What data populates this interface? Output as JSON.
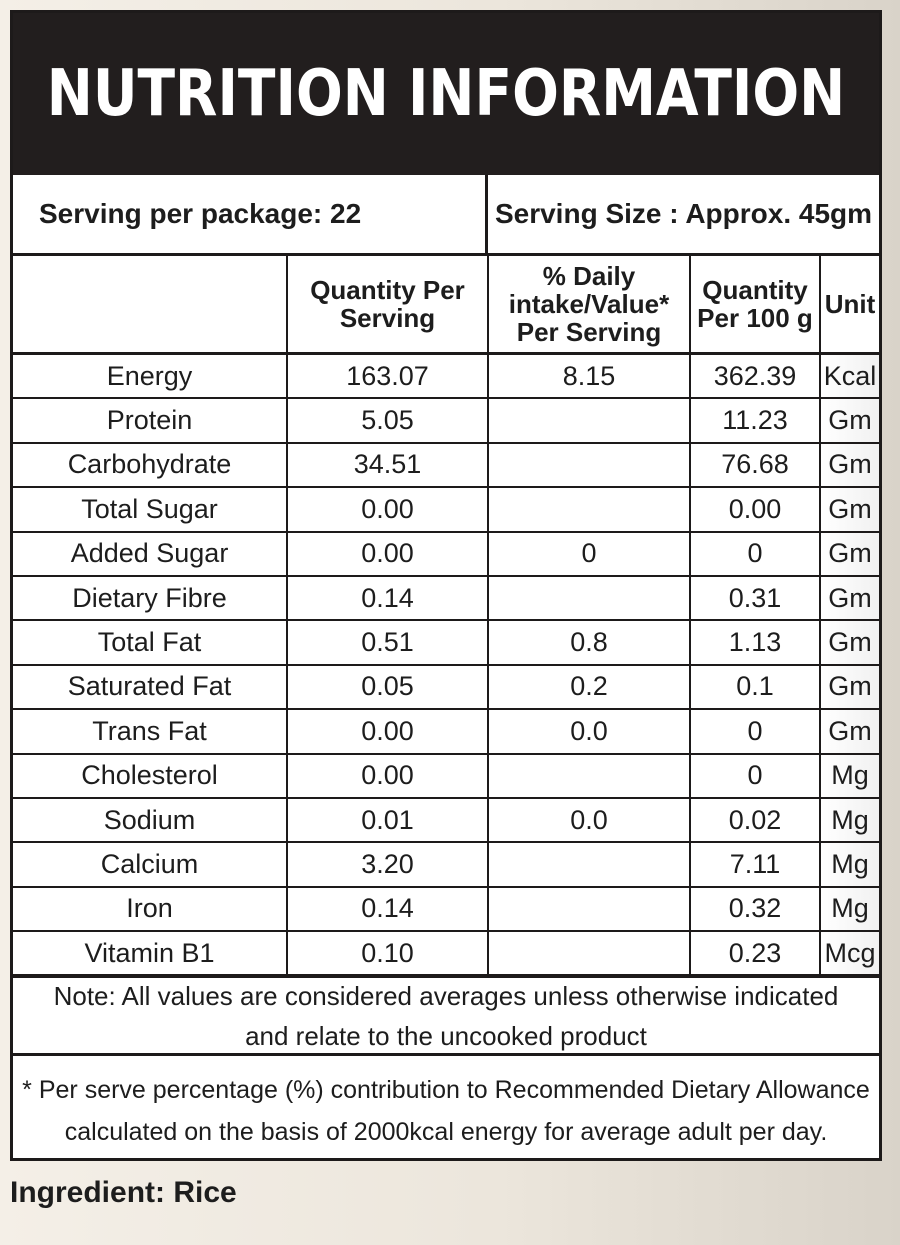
{
  "title": "NUTRITION INFORMATION",
  "serving": {
    "per_package": "Serving per package: 22",
    "size": "Serving Size : Approx. 45gm"
  },
  "table": {
    "headers": [
      "",
      "Quantity Per Serving",
      "% Daily intake/Value* Per Serving",
      "Quantity Per 100 g",
      "Unit"
    ],
    "rows": [
      {
        "name": "Energy",
        "per_serving": "163.07",
        "daily": "8.15",
        "per_100g": "362.39",
        "unit": "Kcal"
      },
      {
        "name": "Protein",
        "per_serving": "5.05",
        "daily": "",
        "per_100g": "11.23",
        "unit": "Gm"
      },
      {
        "name": "Carbohydrate",
        "per_serving": "34.51",
        "daily": "",
        "per_100g": "76.68",
        "unit": "Gm"
      },
      {
        "name": "Total Sugar",
        "per_serving": "0.00",
        "daily": "",
        "per_100g": "0.00",
        "unit": "Gm"
      },
      {
        "name": "Added Sugar",
        "per_serving": "0.00",
        "daily": "0",
        "per_100g": "0",
        "unit": "Gm"
      },
      {
        "name": "Dietary Fibre",
        "per_serving": "0.14",
        "daily": "",
        "per_100g": "0.31",
        "unit": "Gm"
      },
      {
        "name": "Total Fat",
        "per_serving": "0.51",
        "daily": "0.8",
        "per_100g": "1.13",
        "unit": "Gm"
      },
      {
        "name": "Saturated Fat",
        "per_serving": "0.05",
        "daily": "0.2",
        "per_100g": "0.1",
        "unit": "Gm"
      },
      {
        "name": "Trans Fat",
        "per_serving": "0.00",
        "daily": "0.0",
        "per_100g": "0",
        "unit": "Gm"
      },
      {
        "name": "Cholesterol",
        "per_serving": "0.00",
        "daily": "",
        "per_100g": "0",
        "unit": "Mg"
      },
      {
        "name": "Sodium",
        "per_serving": "0.01",
        "daily": "0.0",
        "per_100g": "0.02",
        "unit": "Mg"
      },
      {
        "name": "Calcium",
        "per_serving": "3.20",
        "daily": "",
        "per_100g": "7.11",
        "unit": "Mg"
      },
      {
        "name": "Iron",
        "per_serving": "0.14",
        "daily": "",
        "per_100g": "0.32",
        "unit": "Mg"
      },
      {
        "name": "Vitamin B1",
        "per_serving": "0.10",
        "daily": "",
        "per_100g": "0.23",
        "unit": "Mcg"
      }
    ]
  },
  "note": {
    "line1": "Note: All values are considered averages unless otherwise indicated",
    "line2": "and relate to the uncooked product"
  },
  "footnote": {
    "line1": "* Per serve percentage (%) contribution to Recommended Dietary Allowance",
    "line2": "calculated on the basis of 2000kcal energy for average adult per day."
  },
  "ingredient": "Ingredient: Rice",
  "colors": {
    "header_bg": "#221e1e",
    "border": "#1d1a1a",
    "page_bg": "#f4efe7"
  }
}
